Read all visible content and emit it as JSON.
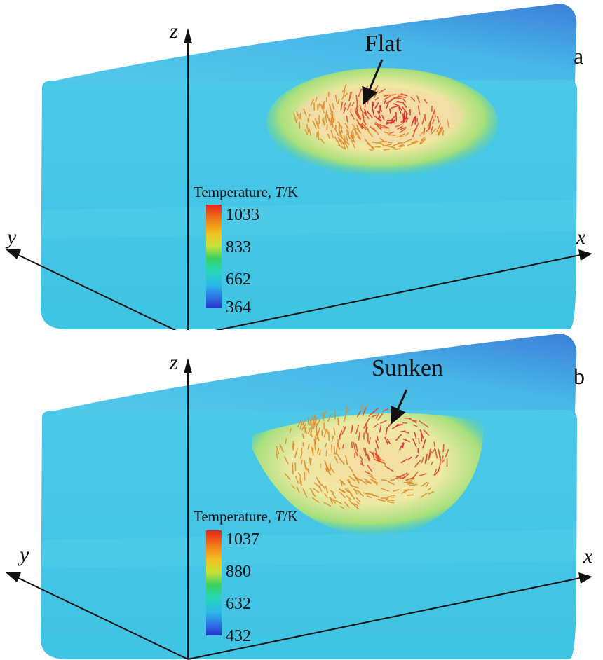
{
  "panels": [
    {
      "label": "a",
      "callout": "Flat",
      "axes": {
        "x": "x",
        "y": "y",
        "z": "z"
      },
      "colorbar": {
        "title_prefix": "Temperature, ",
        "title_var": "T",
        "title_unit": "/K",
        "ticks": [
          "1033",
          "833",
          "662",
          "364"
        ]
      }
    },
    {
      "label": "b",
      "callout": "Sunken",
      "axes": {
        "x": "x",
        "y": "y",
        "z": "z"
      },
      "colorbar": {
        "title_prefix": "Temperature, ",
        "title_var": "T",
        "title_unit": "/K",
        "ticks": [
          "1037",
          "880",
          "632",
          "432"
        ]
      }
    }
  ],
  "colors": {
    "block_front": "#3fc3e6",
    "block_top": "#54c9ea",
    "hot": "#e8201c",
    "warm": "#f2c21f",
    "mid": "#39d160",
    "cold": "#2434c8",
    "arrow": "#d8502a"
  }
}
